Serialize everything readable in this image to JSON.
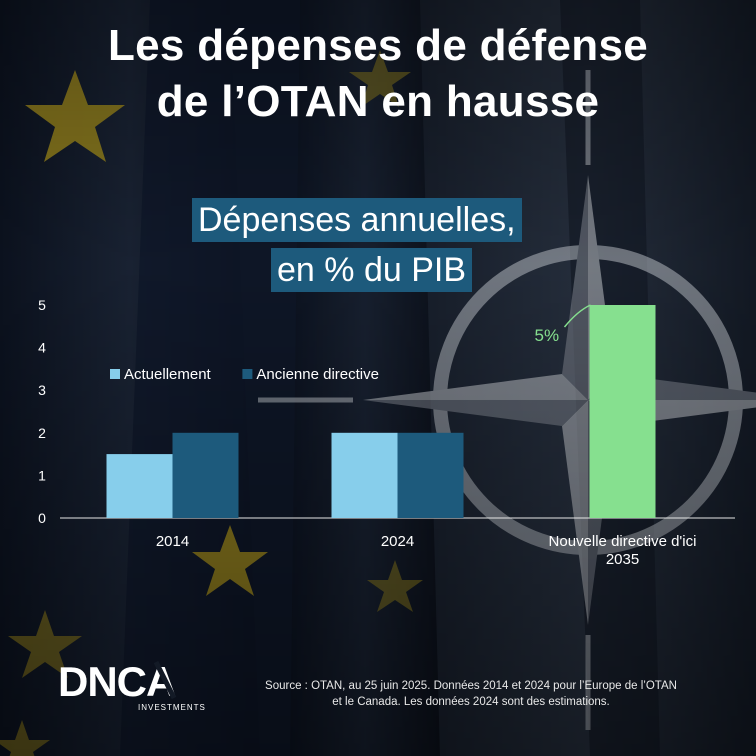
{
  "headline": {
    "line1": "Les dépenses de défense",
    "line2": "de l’OTAN en hausse"
  },
  "subtitle": {
    "line1": "Dépenses annuelles,",
    "line2": "en % du PIB"
  },
  "chart_data": {
    "type": "bar",
    "categories": [
      "2014",
      "2024",
      "Nouvelle directive d'ici 2035"
    ],
    "category_lines": [
      [
        "2014"
      ],
      [
        "2024"
      ],
      [
        "Nouvelle directive d'ici",
        "2035"
      ]
    ],
    "series": [
      {
        "name": "Actuellement",
        "values": [
          1.5,
          2.0,
          null
        ],
        "color": "#87ceeb"
      },
      {
        "name": "Ancienne directive",
        "values": [
          2.0,
          2.0,
          null
        ],
        "color": "#1d5a7c"
      },
      {
        "name": "",
        "values": [
          null,
          null,
          5.0
        ],
        "color": "#86e08f"
      }
    ],
    "ylim": [
      0,
      5
    ],
    "yticks": [
      "0",
      "1",
      "2",
      "3",
      "4",
      "5"
    ],
    "annotation": "5%",
    "annotation_color": "#86e08f",
    "legend_position": "top-left",
    "grid": false,
    "xlabel": "",
    "ylabel": ""
  },
  "logo": {
    "wordmark": "DNCA",
    "tagline": "INVESTMENTS"
  },
  "source": {
    "line1": "Source : OTAN, au 25 juin 2025. Données 2014 et 2024 pour l’Europe de l’OTAN",
    "line2": "et le Canada. Les données 2024 sont des estimations."
  },
  "colors": {
    "background": "#151b26",
    "subtitle_box": "#1d5a7c",
    "text": "#ffffff"
  }
}
